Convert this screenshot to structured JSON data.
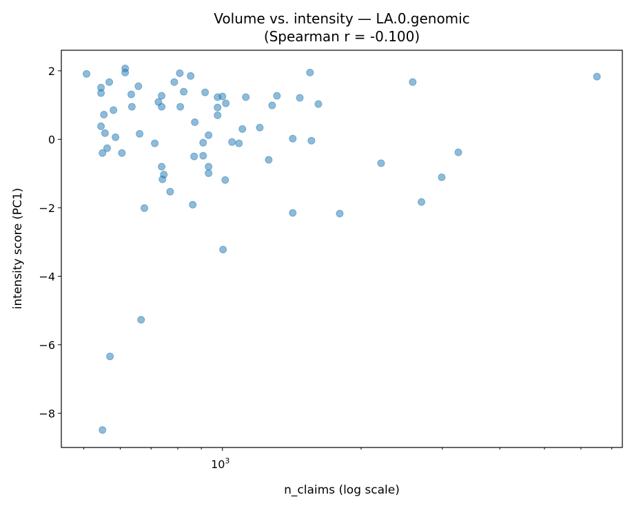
{
  "chart_data": {
    "type": "scatter",
    "title": "Volume vs. intensity — LA.0.genomic",
    "subtitle": "(Spearman r = -0.100)",
    "xlabel": "n_claims (log scale)",
    "ylabel": "intensity score (PC1)",
    "xscale": "log",
    "xlim": [
      447,
      7380
    ],
    "ylim": [
      -9.0,
      2.6
    ],
    "xticks": [
      {
        "value": 1000,
        "base": "10",
        "exp": "3"
      }
    ],
    "xminor": [
      500,
      600,
      700,
      800,
      900,
      2000,
      3000,
      4000,
      5000,
      6000,
      7000
    ],
    "yticks": [
      2,
      0,
      -2,
      -4,
      -6,
      -8
    ],
    "ytick_labels": [
      "2",
      "0",
      "−2",
      "−4",
      "−6",
      "−8"
    ],
    "grid": false,
    "color": "#1f77b4",
    "alpha": 0.5,
    "points": [
      [
        507,
        1.91
      ],
      [
        545,
        1.51
      ],
      [
        545,
        1.35
      ],
      [
        568,
        1.67
      ],
      [
        615,
        2.07
      ],
      [
        615,
        1.95
      ],
      [
        553,
        0.72
      ],
      [
        580,
        0.85
      ],
      [
        545,
        0.38
      ],
      [
        556,
        0.18
      ],
      [
        586,
        0.06
      ],
      [
        562,
        -0.26
      ],
      [
        549,
        -0.4
      ],
      [
        605,
        -0.4
      ],
      [
        634,
        1.31
      ],
      [
        636,
        0.95
      ],
      [
        657,
        1.55
      ],
      [
        661,
        0.16
      ],
      [
        677,
        -2.01
      ],
      [
        666,
        -5.27
      ],
      [
        570,
        -6.34
      ],
      [
        549,
        -8.49
      ],
      [
        713,
        -0.12
      ],
      [
        726,
        1.09
      ],
      [
        738,
        1.27
      ],
      [
        738,
        0.95
      ],
      [
        738,
        -0.8
      ],
      [
        746,
        -1.03
      ],
      [
        741,
        -1.17
      ],
      [
        770,
        -1.53
      ],
      [
        786,
        1.67
      ],
      [
        808,
        1.93
      ],
      [
        810,
        0.95
      ],
      [
        824,
        1.39
      ],
      [
        853,
        1.85
      ],
      [
        871,
        0.5
      ],
      [
        868,
        -0.5
      ],
      [
        862,
        -1.91
      ],
      [
        917,
        1.37
      ],
      [
        908,
        -0.1
      ],
      [
        908,
        -0.48
      ],
      [
        933,
        0.12
      ],
      [
        933,
        -0.8
      ],
      [
        933,
        -0.99
      ],
      [
        976,
        1.23
      ],
      [
        1000,
        1.25
      ],
      [
        976,
        0.93
      ],
      [
        976,
        0.7
      ],
      [
        1017,
        1.05
      ],
      [
        1014,
        -1.19
      ],
      [
        1003,
        -3.22
      ],
      [
        1049,
        -0.08
      ],
      [
        1086,
        -0.12
      ],
      [
        1105,
        0.3
      ],
      [
        1124,
        1.23
      ],
      [
        1205,
        0.34
      ],
      [
        1260,
        -0.6
      ],
      [
        1282,
        0.99
      ],
      [
        1313,
        1.27
      ],
      [
        1421,
        0.02
      ],
      [
        1421,
        -2.15
      ],
      [
        1472,
        1.21
      ],
      [
        1549,
        1.95
      ],
      [
        1560,
        -0.04
      ],
      [
        1615,
        1.03
      ],
      [
        1797,
        -2.17
      ],
      [
        2210,
        -0.7
      ],
      [
        2588,
        1.67
      ],
      [
        2704,
        -1.83
      ],
      [
        2992,
        -1.11
      ],
      [
        3251,
        -0.38
      ],
      [
        6500,
        1.83
      ]
    ]
  }
}
